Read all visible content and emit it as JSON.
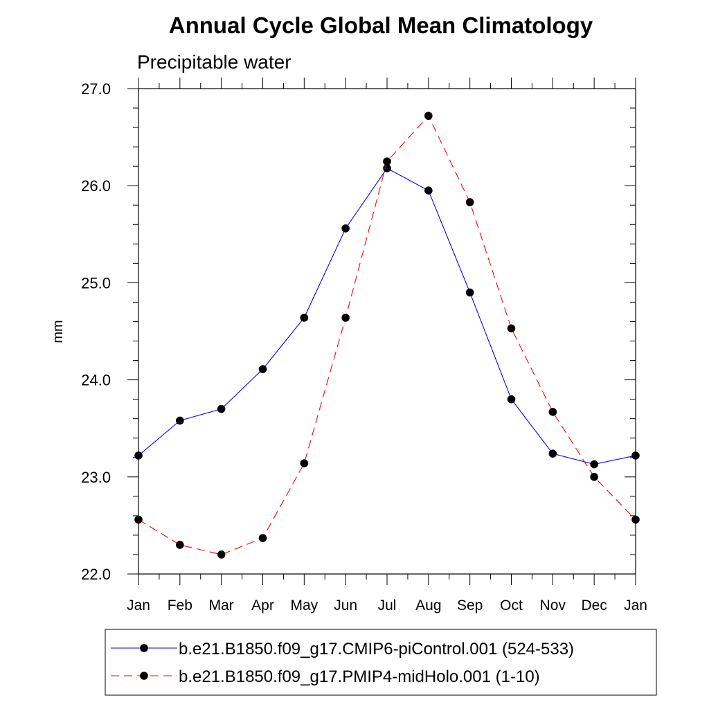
{
  "chart_data": {
    "type": "line",
    "title": "Annual Cycle Global Mean Climatology",
    "subtitle": "Precipitable water",
    "xlabel": "",
    "ylabel": "mm",
    "categories": [
      "Jan",
      "Feb",
      "Mar",
      "Apr",
      "May",
      "Jun",
      "Jul",
      "Aug",
      "Sep",
      "Oct",
      "Nov",
      "Dec",
      "Jan"
    ],
    "ylim": [
      22.0,
      27.0
    ],
    "yticks": [
      "22.0",
      "23.0",
      "24.0",
      "25.0",
      "26.0",
      "27.0"
    ],
    "legend_position": "bottom",
    "series": [
      {
        "name": "b.e21.B1850.f09_g17.CMIP6-piControl.001 (524-533)",
        "color": "#0000ff",
        "dash": "solid",
        "values": [
          23.22,
          23.58,
          23.7,
          24.11,
          24.64,
          25.56,
          26.18,
          25.95,
          24.9,
          23.8,
          23.24,
          23.13,
          23.22
        ]
      },
      {
        "name": "b.e21.B1850.f09_g17.PMIP4-midHolo.001 (1-10)",
        "color": "#ff0000",
        "dash": "dashed",
        "values": [
          22.56,
          22.3,
          22.2,
          22.37,
          23.14,
          24.64,
          26.25,
          26.72,
          25.83,
          24.53,
          23.67,
          23.0,
          22.56
        ]
      }
    ]
  }
}
